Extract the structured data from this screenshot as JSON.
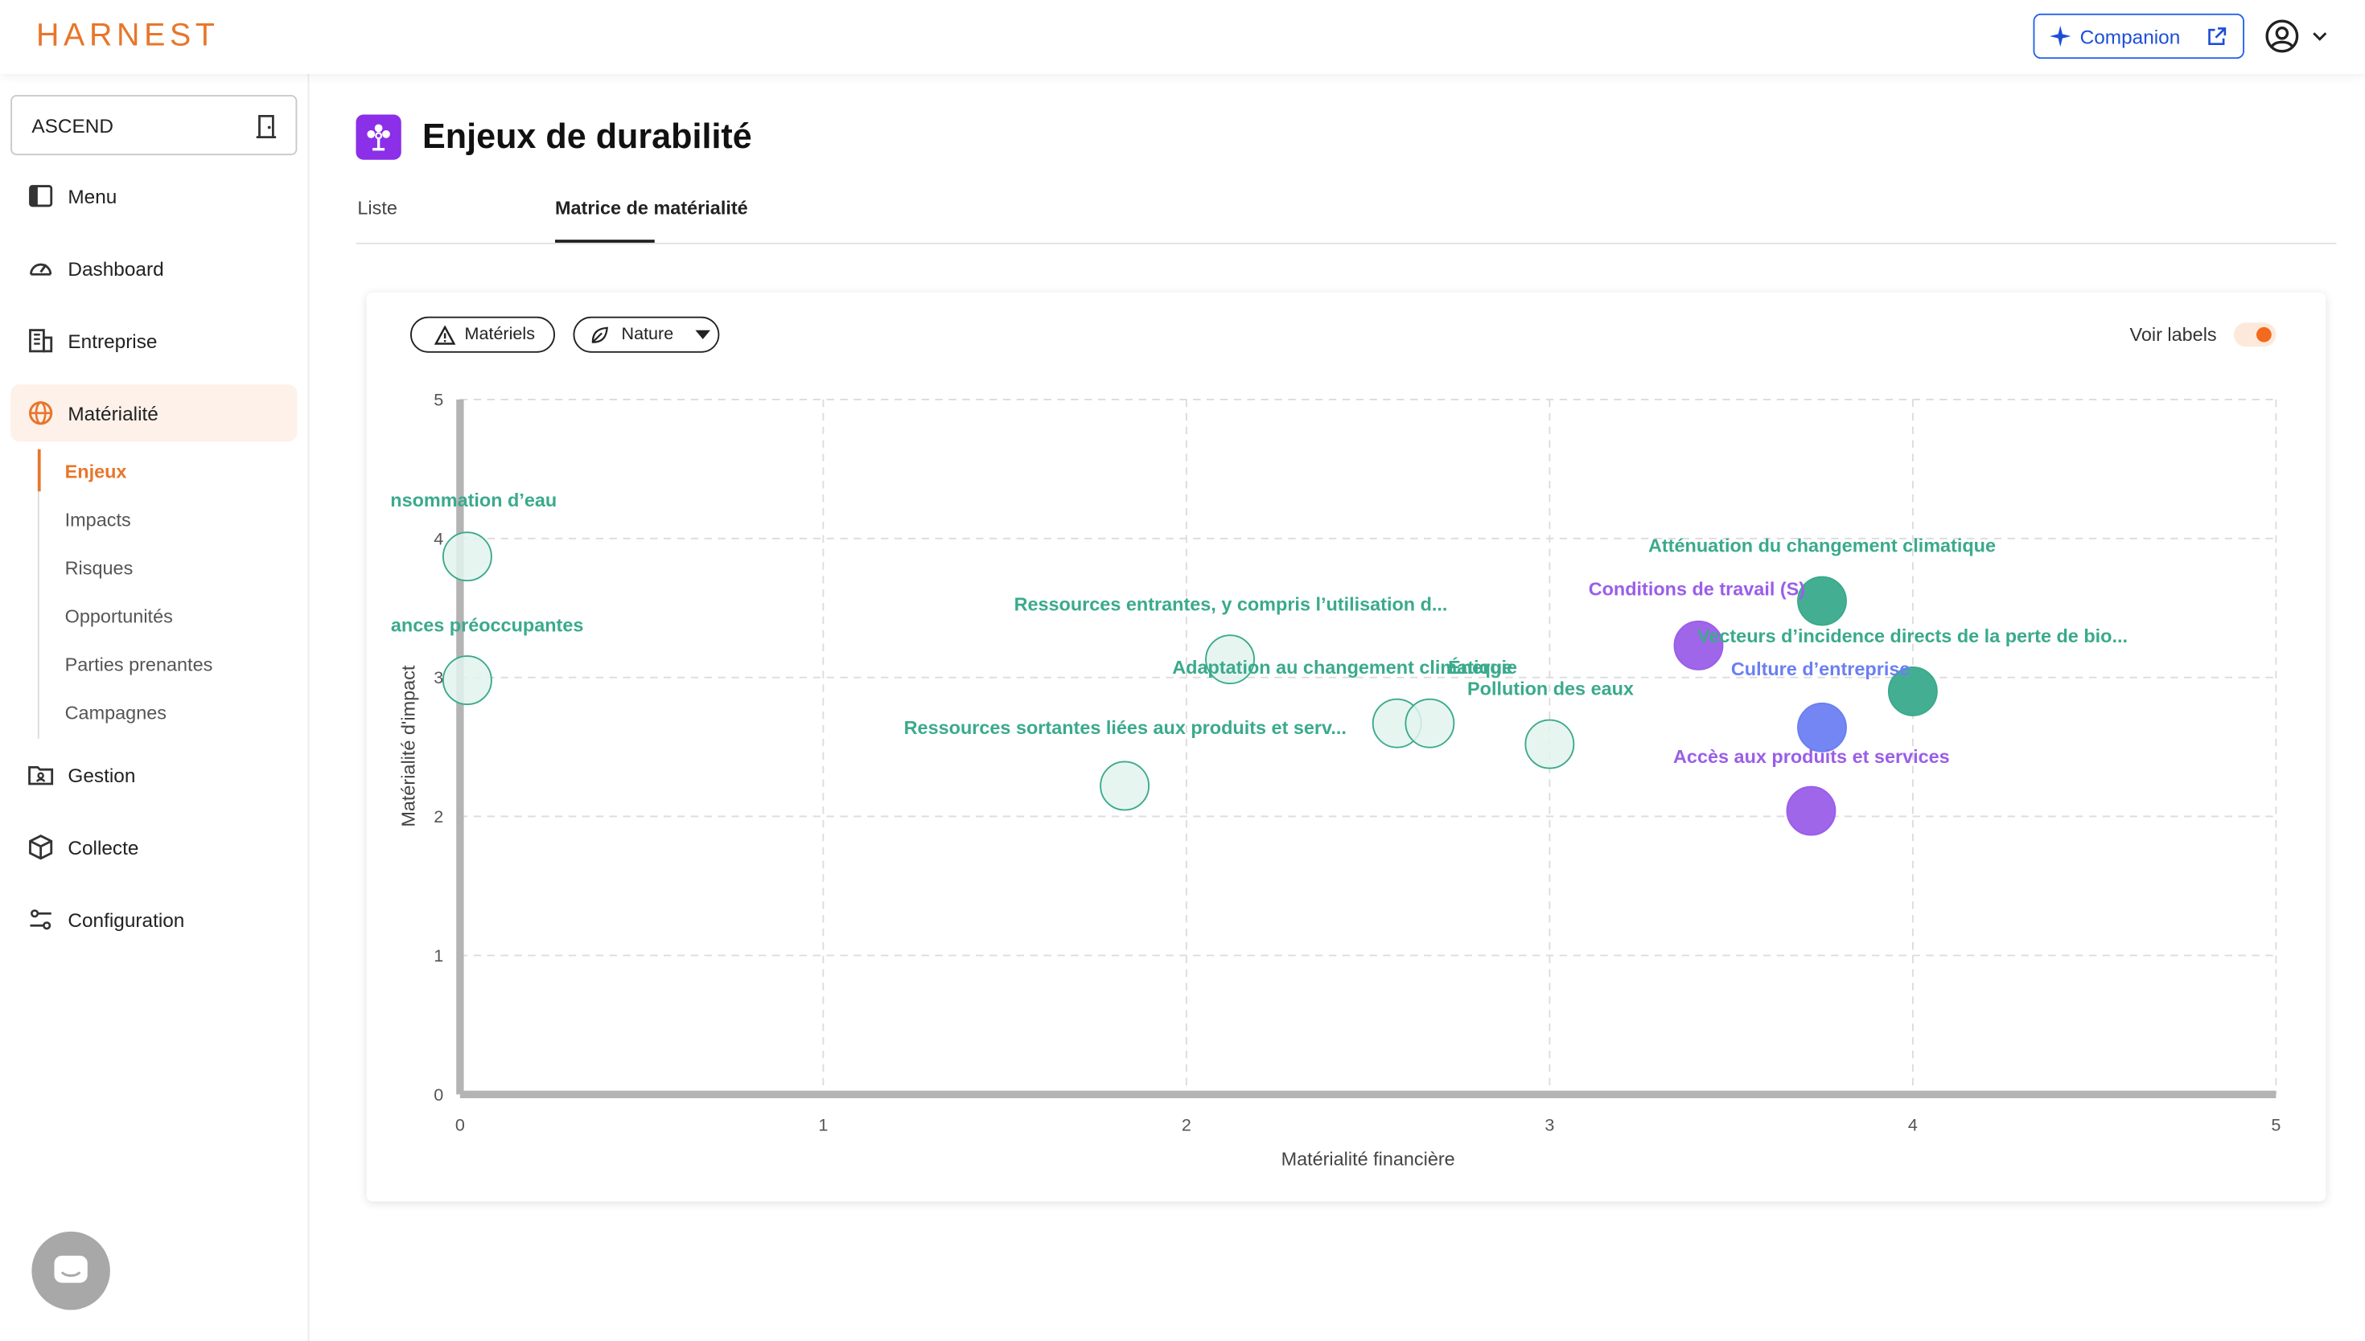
{
  "app": {
    "logo": "HARNEST",
    "companion_label": "Companion"
  },
  "sidebar": {
    "org": "ASCEND",
    "items": [
      {
        "label": "Menu",
        "icon": "panel-icon"
      },
      {
        "label": "Dashboard",
        "icon": "gauge-icon"
      },
      {
        "label": "Entreprise",
        "icon": "building-icon"
      },
      {
        "label": "Matérialité",
        "icon": "globe-icon",
        "active": true
      },
      {
        "label": "Gestion",
        "icon": "folder-user-icon"
      },
      {
        "label": "Collecte",
        "icon": "box-icon"
      },
      {
        "label": "Configuration",
        "icon": "sliders-icon"
      }
    ],
    "sub_items": [
      "Enjeux",
      "Impacts",
      "Risques",
      "Opportunités",
      "Parties prenantes",
      "Campagnes"
    ]
  },
  "page": {
    "title": "Enjeux de durabilité",
    "tabs": [
      "Liste",
      "Matrice de matérialité"
    ],
    "active_tab": "Matrice de matérialité"
  },
  "filters": {
    "materials_label": "Matériels",
    "nature_label": "Nature",
    "toggle_label": "Voir labels",
    "toggle_on": true
  },
  "colors": {
    "accent": "#e8762b",
    "companion": "#2563eb",
    "teal": "#3aaa8c",
    "teal_light": "#e3f3ee",
    "purple": "#9a5ee8",
    "blue": "#6b7ff2",
    "axis": "#b4b4b4"
  },
  "chart_data": {
    "type": "scatter",
    "xlabel": "Matérialité financière",
    "ylabel": "Matérialité d'impact",
    "xlim": [
      0,
      5
    ],
    "ylim": [
      0,
      5
    ],
    "xticks": [
      "0",
      "1",
      "2",
      "3",
      "4",
      "5"
    ],
    "yticks": [
      "0",
      "1",
      "2",
      "3",
      "4",
      "5"
    ],
    "grid": true,
    "points": [
      {
        "label": "nsommation d’eau",
        "x": 0.02,
        "y": 3.87,
        "style": "light"
      },
      {
        "label": "ances préoccupantes",
        "x": 0.02,
        "y": 2.98,
        "style": "light"
      },
      {
        "label": "Ressources entrantes, y compris l’utilisation d...",
        "x": 2.12,
        "y": 3.13,
        "style": "light"
      },
      {
        "label": "Adaptation au changement climatique",
        "x": 2.58,
        "y": 2.67,
        "style": "light"
      },
      {
        "label": "Énergie",
        "x": 2.67,
        "y": 2.67,
        "style": "light"
      },
      {
        "label": "Pollution des eaux",
        "x": 3.0,
        "y": 2.52,
        "style": "light"
      },
      {
        "label": "Ressources sortantes liées aux produits et serv...",
        "x": 1.83,
        "y": 2.22,
        "style": "light"
      },
      {
        "label": "Atténuation du changement climatique",
        "x": 3.75,
        "y": 3.55,
        "style": "teal"
      },
      {
        "label": "Conditions de travail (S)",
        "x": 3.41,
        "y": 3.23,
        "style": "purple"
      },
      {
        "label": "Vecteurs d’incidence directs de la perte de bio...",
        "x": 4.0,
        "y": 2.9,
        "style": "teal"
      },
      {
        "label": "Culture d’entreprise",
        "x": 3.75,
        "y": 2.64,
        "style": "blue"
      },
      {
        "label": "Accès aux produits et services",
        "x": 3.72,
        "y": 2.04,
        "style": "purple"
      }
    ]
  }
}
